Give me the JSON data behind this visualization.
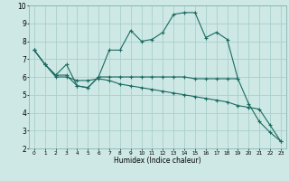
{
  "title": "",
  "xlabel": "Humidex (Indice chaleur)",
  "xlim": [
    -0.5,
    23.5
  ],
  "ylim": [
    2,
    10
  ],
  "xticks": [
    0,
    1,
    2,
    3,
    4,
    5,
    6,
    7,
    8,
    9,
    10,
    11,
    12,
    13,
    14,
    15,
    16,
    17,
    18,
    19,
    20,
    21,
    22,
    23
  ],
  "yticks": [
    2,
    3,
    4,
    5,
    6,
    7,
    8,
    9,
    10
  ],
  "bg_color": "#cde8e5",
  "grid_color": "#aacfcc",
  "line_color": "#1a6b60",
  "lines": [
    [
      7.5,
      6.7,
      6.1,
      6.7,
      5.5,
      5.4,
      6.0,
      7.5,
      7.5,
      8.6,
      8.0,
      8.1,
      8.5,
      9.5,
      9.6,
      9.6,
      8.2,
      8.5,
      8.1,
      5.9,
      4.5,
      3.5,
      2.9,
      2.4
    ],
    [
      7.5,
      6.7,
      6.1,
      6.1,
      5.5,
      5.4,
      6.0,
      6.0,
      6.0,
      6.0,
      6.0,
      6.0,
      6.0,
      6.0,
      6.0,
      5.9,
      5.9,
      5.9,
      5.9,
      5.9,
      null,
      null,
      null,
      null
    ],
    [
      7.5,
      6.7,
      6.0,
      6.0,
      5.8,
      5.8,
      5.9,
      5.8,
      5.6,
      5.5,
      5.4,
      5.3,
      5.2,
      5.1,
      5.0,
      4.9,
      4.8,
      4.7,
      4.6,
      4.4,
      4.3,
      4.2,
      3.3,
      2.4
    ]
  ]
}
